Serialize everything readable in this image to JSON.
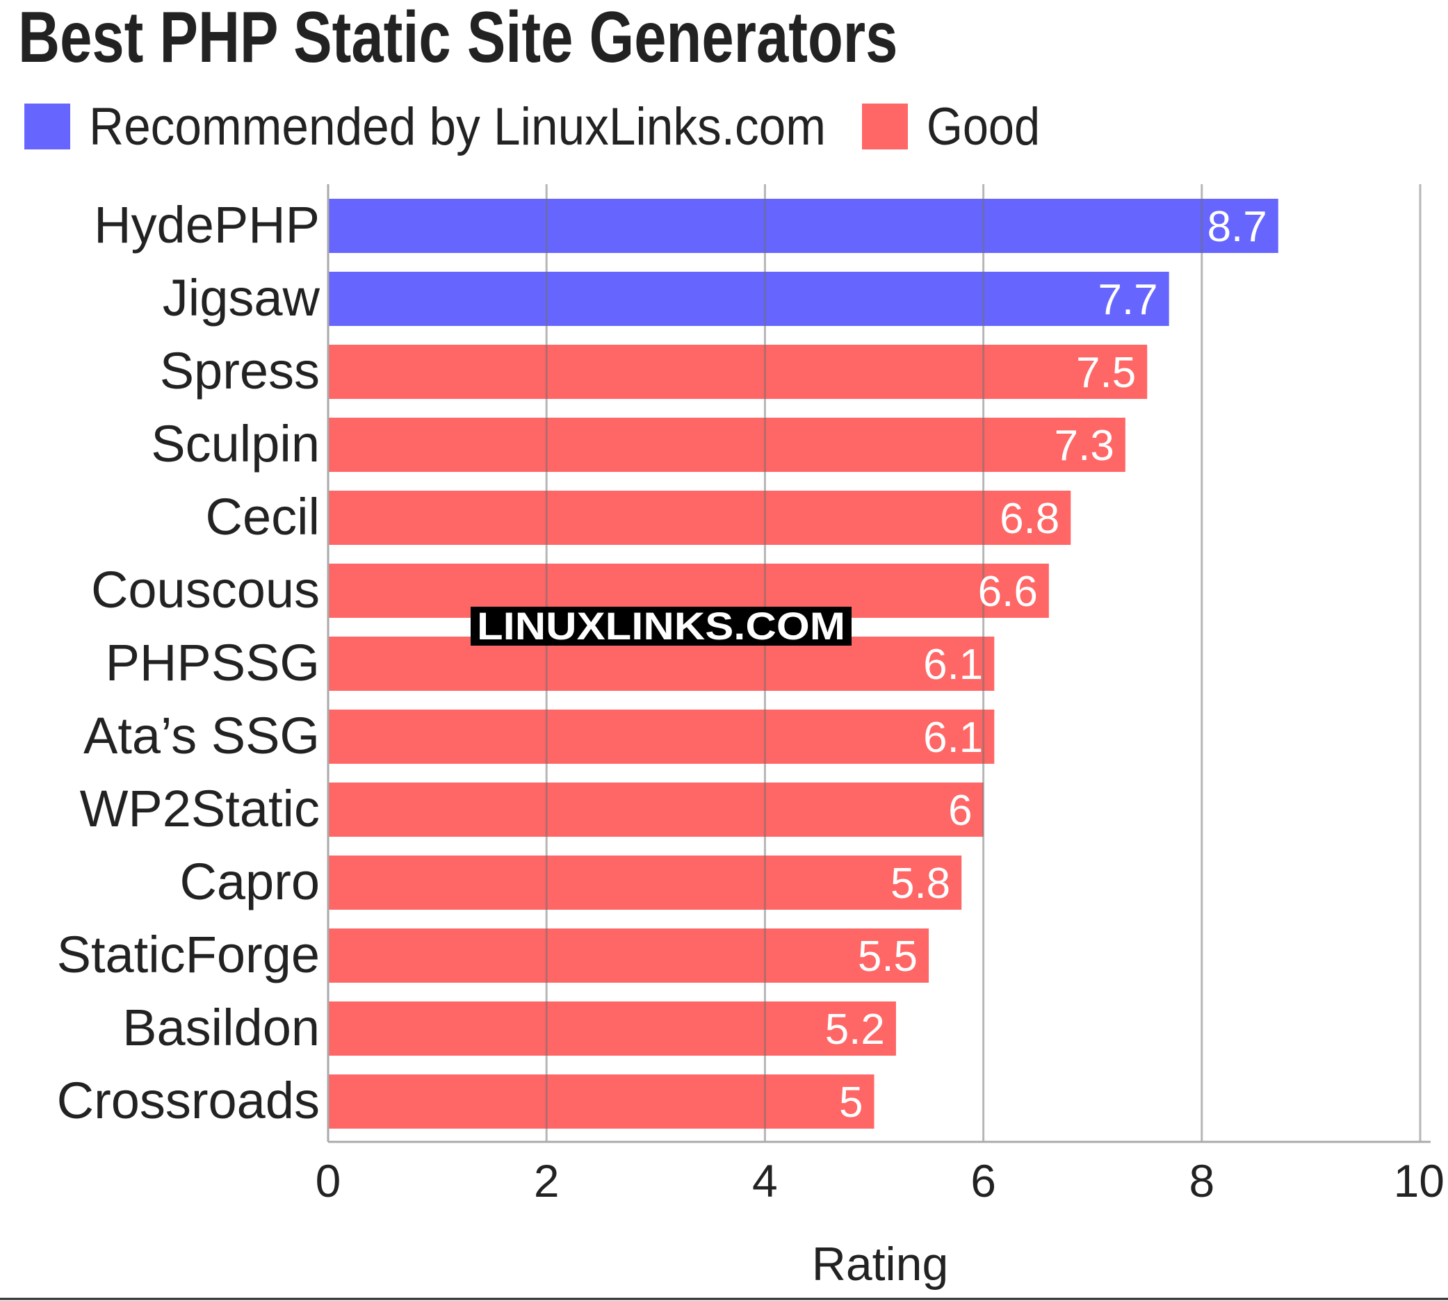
{
  "chart_data": {
    "type": "bar",
    "orientation": "horizontal",
    "title": "Best PHP Static Site Generators",
    "xlabel": "Rating",
    "ylabel": "",
    "xlim": [
      0,
      10
    ],
    "x_ticks": [
      0,
      2,
      4,
      6,
      8,
      10
    ],
    "grid": true,
    "legend_position": "top-left",
    "legend": [
      {
        "label": "Recommended by LinuxLinks.com",
        "color": "#6666ff"
      },
      {
        "label": "Good",
        "color": "#ff6666"
      }
    ],
    "categories": [
      "HydePHP",
      "Jigsaw",
      "Spress",
      "Sculpin",
      "Cecil",
      "Couscous",
      "PHPSSG",
      "Ata’s SSG",
      "WP2Static",
      "Capro",
      "StaticForge",
      "Basildon",
      "Crossroads"
    ],
    "values": [
      8.7,
      7.7,
      7.5,
      7.3,
      6.8,
      6.6,
      6.1,
      6.1,
      6,
      5.8,
      5.5,
      5.2,
      5
    ],
    "value_labels": [
      "8.7",
      "7.7",
      "7.5",
      "7.3",
      "6.8",
      "6.6",
      "6.1",
      "6.1",
      "6",
      "5.8",
      "5.5",
      "5.2",
      "5"
    ],
    "groups": [
      "Recommended by LinuxLinks.com",
      "Recommended by LinuxLinks.com",
      "Good",
      "Good",
      "Good",
      "Good",
      "Good",
      "Good",
      "Good",
      "Good",
      "Good",
      "Good",
      "Good"
    ],
    "watermark": "LINUXLINKS.COM"
  }
}
